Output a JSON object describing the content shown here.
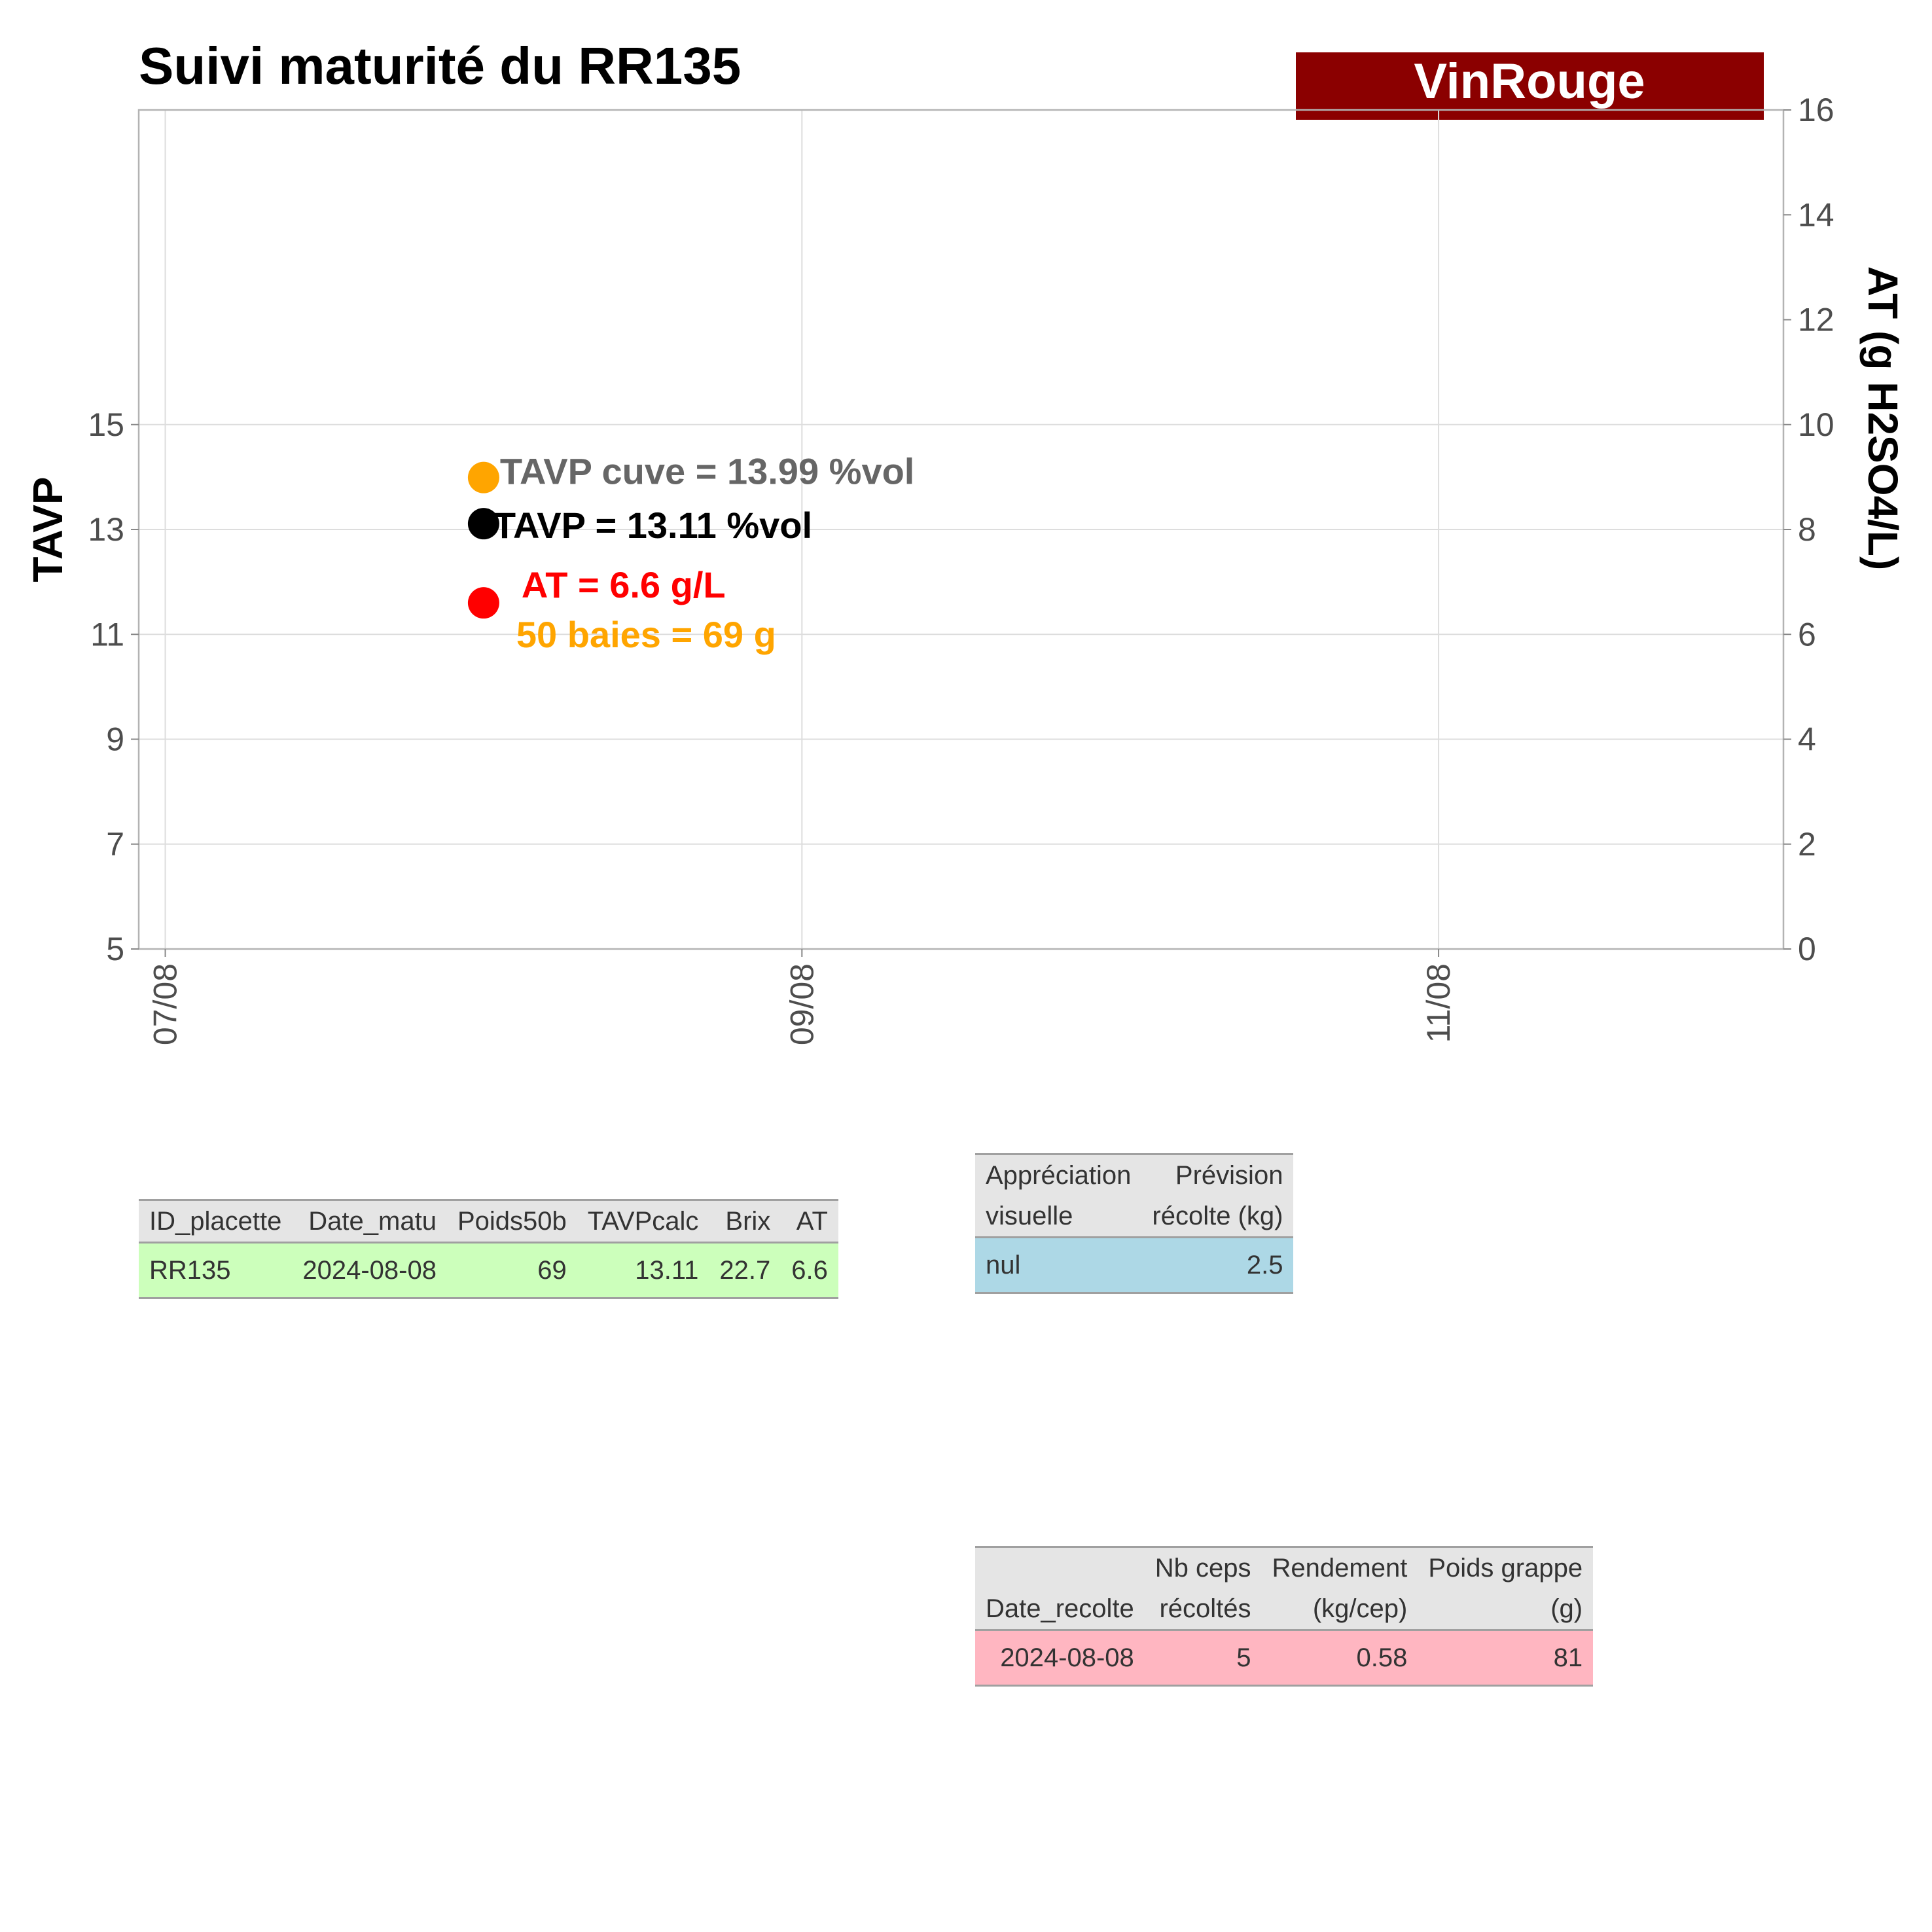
{
  "header": {
    "title": "Suivi maturité du  RR135",
    "badge": "VinRouge",
    "badge_color": "#8b0000"
  },
  "chart_data": {
    "type": "scatter",
    "title": "Suivi maturité du  RR135",
    "ylabel": "TAVP",
    "y2label": "AT (g H2SO4/L)",
    "xlabel": "",
    "x_ticks": [
      "07/08",
      "09/08",
      "11/08"
    ],
    "x_tick_dates": [
      "2024-08-07",
      "2024-08-09",
      "2024-08-11"
    ],
    "xlim": [
      "2024-08-06T22:00",
      "2024-08-12T02:00"
    ],
    "ylim": [
      5,
      21
    ],
    "y_ticks": [
      5,
      7,
      9,
      11,
      13,
      15
    ],
    "y2lim": [
      0,
      16
    ],
    "y2_ticks": [
      0,
      2,
      4,
      6,
      8,
      10,
      12,
      14,
      16
    ],
    "grid": true,
    "points": [
      {
        "series": "TAVP cuve",
        "x": "2024-08-08",
        "y": 13.99,
        "axis": "left",
        "color": "#ffa500"
      },
      {
        "series": "TAVP",
        "x": "2024-08-08",
        "y": 13.11,
        "axis": "left",
        "color": "#000000"
      },
      {
        "series": "AT",
        "x": "2024-08-08",
        "y": 6.6,
        "axis": "right",
        "color": "#ff0000"
      }
    ],
    "annotations": [
      {
        "text": "TAVP cuve = 13.99 %vol",
        "color": "#666666"
      },
      {
        "text": "TAVP = 13.11 %vol",
        "color": "#000000"
      },
      {
        "text": "AT = 6.6 g/L",
        "color": "#ff0000"
      },
      {
        "text": "50 baies = 69 g",
        "color": "#ffa500"
      }
    ]
  },
  "table_matu": {
    "headers": [
      "ID_placette",
      "Date_matu",
      "Poids50b",
      "TAVPcalc",
      "Brix",
      "AT"
    ],
    "row": [
      "RR135",
      "2024-08-08",
      "69",
      "13.11",
      "22.7",
      "6.6"
    ],
    "row_color": "#ccffbb"
  },
  "table_appreciation": {
    "headers_line1": [
      "Appréciation",
      "Prévision"
    ],
    "headers_line2": [
      "visuelle",
      "récolte (kg)"
    ],
    "row": [
      "nul",
      "2.5"
    ],
    "row_color": "#add8e6"
  },
  "table_recolte": {
    "headers_line1": [
      "",
      "Nb ceps",
      "Rendement",
      "Poids grappe"
    ],
    "headers_line2": [
      "Date_recolte",
      "récoltés",
      "(kg/cep)",
      "(g)"
    ],
    "row": [
      "2024-08-08",
      "5",
      "0.58",
      "81"
    ],
    "row_color": "#ffb6c1"
  }
}
